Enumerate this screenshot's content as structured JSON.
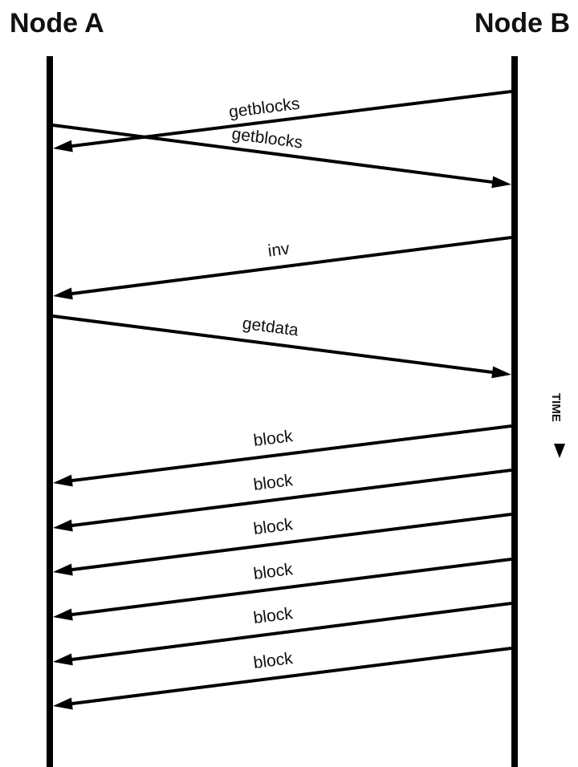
{
  "nodes": {
    "left": "Node A",
    "right": "Node B"
  },
  "time_label": "TIME",
  "messages": [
    {
      "label": "getblocks",
      "from": "Node B",
      "to": "Node A"
    },
    {
      "label": "getblocks",
      "from": "Node A",
      "to": "Node B"
    },
    {
      "label": "inv",
      "from": "Node B",
      "to": "Node A"
    },
    {
      "label": "getdata",
      "from": "Node A",
      "to": "Node B"
    },
    {
      "label": "block",
      "from": "Node B",
      "to": "Node A"
    },
    {
      "label": "block",
      "from": "Node B",
      "to": "Node A"
    },
    {
      "label": "block",
      "from": "Node B",
      "to": "Node A"
    },
    {
      "label": "block",
      "from": "Node B",
      "to": "Node A"
    },
    {
      "label": "block",
      "from": "Node B",
      "to": "Node A"
    },
    {
      "label": "block",
      "from": "Node B",
      "to": "Node A"
    }
  ]
}
